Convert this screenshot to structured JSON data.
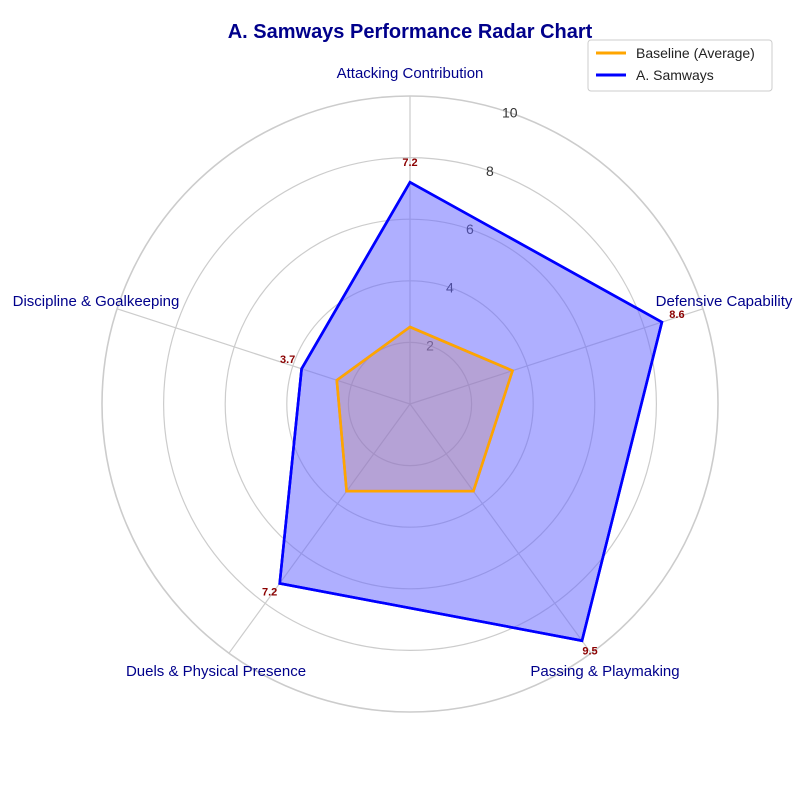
{
  "chart_data": {
    "type": "radar",
    "title": "A. Samways Performance Radar Chart",
    "categories": [
      "Attacking Contribution",
      "Defensive Capability",
      "Passing & Playmaking",
      "Duels & Physical Presence",
      "Discipline & Goalkeeping"
    ],
    "rlim": [
      0,
      10
    ],
    "rticks": [
      "2",
      "4",
      "6",
      "8",
      "10"
    ],
    "grid": true,
    "legend_position": "top-right",
    "series": [
      {
        "name": "Baseline (Average)",
        "values": [
          2.5,
          3.5,
          3.5,
          3.5,
          2.5
        ],
        "color": "#ffa500",
        "fill": false
      },
      {
        "name": "A. Samways",
        "values": [
          7.2,
          8.6,
          9.5,
          7.2,
          3.7
        ],
        "color": "#0000ff",
        "fill": true,
        "fill_color": "#6666ff"
      }
    ],
    "data_labels": [
      "7.2",
      "8.6",
      "9.5",
      "7.2",
      "3.7"
    ],
    "colors": {
      "title": "#00008b",
      "axis_label": "#00008b",
      "data_label": "#8b0000",
      "grid": "#cccccc"
    }
  }
}
